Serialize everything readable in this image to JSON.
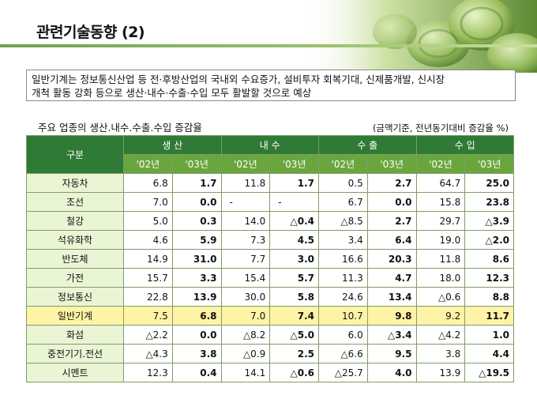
{
  "header": {
    "title": "관련기술동향 (2)"
  },
  "note": {
    "lines": [
      "일반기계는 정보통신산업 등 전·후방산업의 국내외 수요증가, 설비투자 회복기대, 신제품개발, 신시장",
      "개척 활동 강화 등으로 생산·내수·수출·수입 모두 활발할 것으로 예상"
    ]
  },
  "table": {
    "subtitle": "주요 업종의 생산.내수.수출.수입 증감율",
    "unit_note": "(금액기준, 전년동기대비 증감율 %)",
    "row_header": "구분",
    "groups": [
      "생 산",
      "내 수",
      "수 출",
      "수 입"
    ],
    "years": [
      "'02년",
      "'03년",
      "'02년",
      "'03년",
      "'02년",
      "'03년",
      "'02년",
      "'03년"
    ],
    "rows": [
      {
        "label": "자동차",
        "values": [
          "6.8",
          "1.7",
          "11.8",
          "1.7",
          "0.5",
          "2.7",
          "64.7",
          "25.0"
        ]
      },
      {
        "label": "조선",
        "values": [
          "7.0",
          "0.0",
          "-",
          "-",
          "6.7",
          "0.0",
          "15.8",
          "23.8"
        ]
      },
      {
        "label": "철강",
        "values": [
          "5.0",
          "0.3",
          "14.0",
          "△0.4",
          "△8.5",
          "2.7",
          "29.7",
          "△3.9"
        ]
      },
      {
        "label": "석유화학",
        "values": [
          "4.6",
          "5.9",
          "7.3",
          "4.5",
          "3.4",
          "6.4",
          "19.0",
          "△2.0"
        ]
      },
      {
        "label": "반도체",
        "values": [
          "14.9",
          "31.0",
          "7.7",
          "3.0",
          "16.6",
          "20.3",
          "11.8",
          "8.6"
        ]
      },
      {
        "label": "가전",
        "values": [
          "15.7",
          "3.3",
          "15.4",
          "5.7",
          "11.3",
          "4.7",
          "18.0",
          "12.3"
        ]
      },
      {
        "label": "정보통신",
        "values": [
          "22.8",
          "13.9",
          "30.0",
          "5.8",
          "24.6",
          "13.4",
          "△0.6",
          "8.8"
        ]
      },
      {
        "label": "일반기계",
        "values": [
          "7.5",
          "6.8",
          "7.0",
          "7.4",
          "10.7",
          "9.8",
          "9.2",
          "11.7"
        ]
      },
      {
        "label": "화섬",
        "values": [
          "△2.2",
          "0.0",
          "△8.2",
          "△5.0",
          "6.0",
          "△3.4",
          "△4.2",
          "1.0"
        ]
      },
      {
        "label": "중전기기.전선",
        "values": [
          "△4.3",
          "3.8",
          "△0.9",
          "2.5",
          "△6.6",
          "9.5",
          "3.8",
          "4.4"
        ]
      },
      {
        "label": "시멘트",
        "values": [
          "12.3",
          "0.4",
          "14.1",
          "△0.6",
          "△25.7",
          "4.0",
          "13.9",
          "△19.5"
        ]
      }
    ]
  },
  "colors": {
    "header_dark": "#2f7a35",
    "header_light": "#6aa63e",
    "label_bg": "#eaf5d5",
    "highlight": "#fff3a6"
  },
  "decoration": {
    "icon": "green-coins-banner-icon"
  }
}
